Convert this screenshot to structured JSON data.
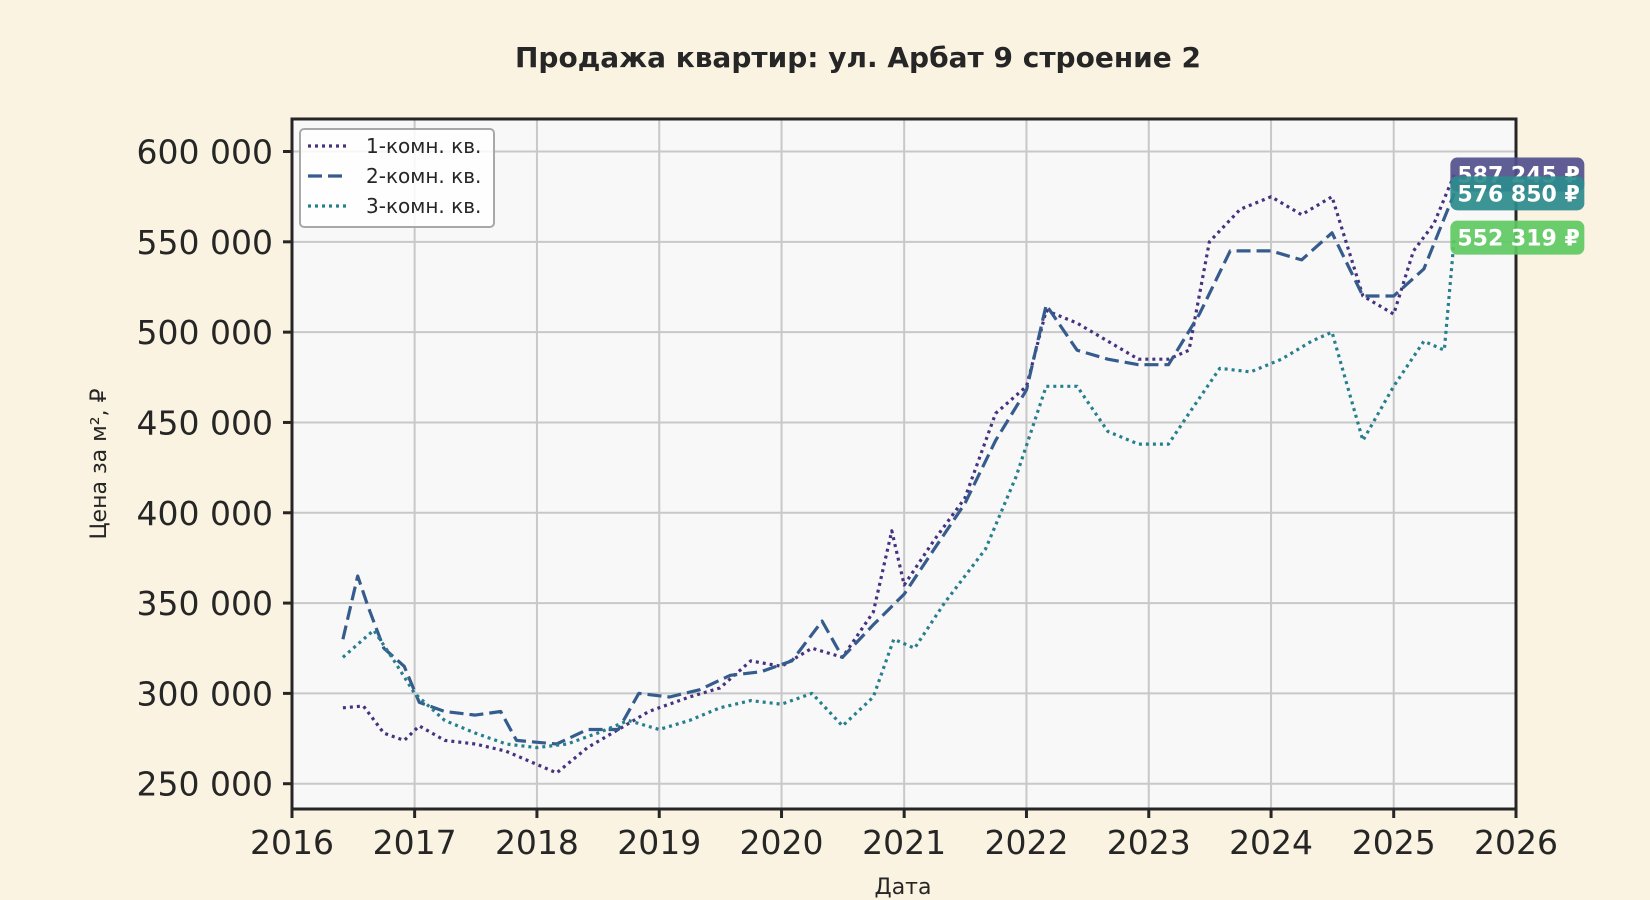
{
  "chart_data": {
    "type": "line",
    "title": "Продажа квартир: ул. Арбат 9 строение 2",
    "xlabel": "Дата",
    "ylabel": "Цена за м², ₽",
    "xlim": [
      "2016-01-01",
      "2026-01-01"
    ],
    "ylim": [
      236000,
      618000
    ],
    "grid": true,
    "legend_position": "top-left",
    "x_ticks": [
      "2016",
      "2017",
      "2018",
      "2019",
      "2020",
      "2021",
      "2022",
      "2023",
      "2024",
      "2025",
      "2026"
    ],
    "y_ticks": [
      250000,
      300000,
      350000,
      400000,
      450000,
      500000,
      550000,
      600000
    ],
    "y_tick_labels": [
      "250 000",
      "300 000",
      "350 000",
      "400 000",
      "450 000",
      "500 000",
      "550 000",
      "600 000"
    ],
    "series": [
      {
        "name": "1-комн. кв.",
        "color": "#46327e",
        "style": "dotted",
        "last_value_label": "587 245 ₽",
        "badge_color": "#51508c",
        "points": [
          [
            "2016-06-01",
            292000
          ],
          [
            "2016-08-01",
            293000
          ],
          [
            "2016-10-01",
            278000
          ],
          [
            "2016-12-01",
            274000
          ],
          [
            "2017-01-15",
            282000
          ],
          [
            "2017-04-01",
            274000
          ],
          [
            "2017-07-01",
            272000
          ],
          [
            "2017-10-01",
            268000
          ],
          [
            "2017-12-15",
            262000
          ],
          [
            "2018-03-01",
            256000
          ],
          [
            "2018-06-01",
            270000
          ],
          [
            "2018-09-01",
            280000
          ],
          [
            "2018-12-01",
            290000
          ],
          [
            "2019-04-01",
            298000
          ],
          [
            "2019-07-01",
            303000
          ],
          [
            "2019-10-01",
            318000
          ],
          [
            "2020-01-01",
            315000
          ],
          [
            "2020-04-01",
            325000
          ],
          [
            "2020-07-01",
            320000
          ],
          [
            "2020-10-01",
            345000
          ],
          [
            "2020-11-25",
            390000
          ],
          [
            "2021-01-01",
            360000
          ],
          [
            "2021-04-01",
            385000
          ],
          [
            "2021-07-01",
            408000
          ],
          [
            "2021-10-01",
            455000
          ],
          [
            "2022-01-01",
            470000
          ],
          [
            "2022-03-01",
            512000
          ],
          [
            "2022-06-01",
            505000
          ],
          [
            "2022-09-01",
            495000
          ],
          [
            "2022-12-01",
            485000
          ],
          [
            "2023-03-01",
            485000
          ],
          [
            "2023-05-01",
            490000
          ],
          [
            "2023-07-01",
            550000
          ],
          [
            "2023-10-01",
            568000
          ],
          [
            "2024-01-01",
            575000
          ],
          [
            "2024-04-01",
            565000
          ],
          [
            "2024-07-01",
            575000
          ],
          [
            "2024-10-01",
            520000
          ],
          [
            "2025-01-01",
            510000
          ],
          [
            "2025-03-01",
            545000
          ],
          [
            "2025-05-01",
            560000
          ],
          [
            "2025-07-01",
            587245
          ]
        ]
      },
      {
        "name": "2-комн. кв.",
        "color": "#365c8d",
        "style": "dashed",
        "last_value_label": "576 850 ₽",
        "badge_color": "#2d8b8c",
        "points": [
          [
            "2016-06-01",
            330000
          ],
          [
            "2016-07-15",
            365000
          ],
          [
            "2016-08-15",
            348000
          ],
          [
            "2016-10-01",
            325000
          ],
          [
            "2016-12-01",
            315000
          ],
          [
            "2017-01-15",
            295000
          ],
          [
            "2017-04-01",
            290000
          ],
          [
            "2017-07-01",
            288000
          ],
          [
            "2017-09-15",
            290000
          ],
          [
            "2017-11-01",
            274000
          ],
          [
            "2018-03-01",
            272000
          ],
          [
            "2018-06-01",
            280000
          ],
          [
            "2018-09-01",
            280000
          ],
          [
            "2018-11-01",
            300000
          ],
          [
            "2019-02-01",
            298000
          ],
          [
            "2019-05-01",
            302000
          ],
          [
            "2019-08-01",
            310000
          ],
          [
            "2019-11-01",
            312000
          ],
          [
            "2020-02-01",
            318000
          ],
          [
            "2020-05-01",
            340000
          ],
          [
            "2020-07-01",
            320000
          ],
          [
            "2020-10-01",
            338000
          ],
          [
            "2021-01-01",
            355000
          ],
          [
            "2021-04-01",
            380000
          ],
          [
            "2021-07-01",
            405000
          ],
          [
            "2021-10-01",
            440000
          ],
          [
            "2022-01-01",
            468000
          ],
          [
            "2022-03-01",
            515000
          ],
          [
            "2022-06-01",
            490000
          ],
          [
            "2022-09-01",
            485000
          ],
          [
            "2022-12-01",
            482000
          ],
          [
            "2023-03-01",
            482000
          ],
          [
            "2023-06-01",
            510000
          ],
          [
            "2023-09-01",
            545000
          ],
          [
            "2024-01-01",
            545000
          ],
          [
            "2024-04-01",
            540000
          ],
          [
            "2024-07-01",
            555000
          ],
          [
            "2024-10-01",
            520000
          ],
          [
            "2025-01-01",
            520000
          ],
          [
            "2025-04-01",
            535000
          ],
          [
            "2025-07-01",
            576850
          ]
        ]
      },
      {
        "name": "3-комн. кв.",
        "color": "#277f8e",
        "style": "dotted",
        "last_value_label": "552 319 ₽",
        "badge_color": "#5ec962",
        "points": [
          [
            "2016-06-01",
            320000
          ],
          [
            "2016-09-01",
            335000
          ],
          [
            "2016-11-01",
            318000
          ],
          [
            "2017-01-01",
            300000
          ],
          [
            "2017-04-01",
            285000
          ],
          [
            "2017-07-01",
            278000
          ],
          [
            "2017-10-01",
            272000
          ],
          [
            "2018-01-01",
            270000
          ],
          [
            "2018-04-01",
            272000
          ],
          [
            "2018-07-01",
            278000
          ],
          [
            "2018-10-01",
            285000
          ],
          [
            "2019-01-01",
            280000
          ],
          [
            "2019-04-01",
            285000
          ],
          [
            "2019-07-01",
            292000
          ],
          [
            "2019-10-01",
            296000
          ],
          [
            "2020-01-01",
            294000
          ],
          [
            "2020-04-01",
            300000
          ],
          [
            "2020-07-01",
            282000
          ],
          [
            "2020-10-01",
            298000
          ],
          [
            "2020-12-01",
            330000
          ],
          [
            "2021-02-01",
            325000
          ],
          [
            "2021-05-01",
            350000
          ],
          [
            "2021-09-01",
            380000
          ],
          [
            "2021-12-01",
            420000
          ],
          [
            "2022-03-01",
            470000
          ],
          [
            "2022-06-01",
            470000
          ],
          [
            "2022-09-01",
            445000
          ],
          [
            "2022-12-01",
            438000
          ],
          [
            "2023-03-01",
            438000
          ],
          [
            "2023-05-01",
            455000
          ],
          [
            "2023-08-01",
            480000
          ],
          [
            "2023-11-01",
            478000
          ],
          [
            "2024-02-01",
            485000
          ],
          [
            "2024-05-01",
            495000
          ],
          [
            "2024-07-01",
            500000
          ],
          [
            "2024-10-01",
            440000
          ],
          [
            "2025-01-01",
            470000
          ],
          [
            "2025-04-01",
            495000
          ],
          [
            "2025-06-01",
            490000
          ],
          [
            "2025-07-01",
            552319
          ]
        ]
      }
    ]
  }
}
